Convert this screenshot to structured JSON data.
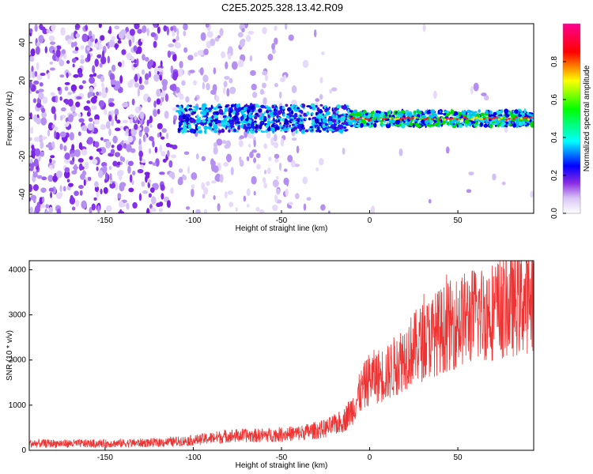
{
  "figure_title": "C2E5.2025.328.13.42.R09",
  "chart_data": [
    {
      "type": "heatmap",
      "title": "C2E5.2025.328.13.42.R09",
      "xlabel": "Height of straight line (km)",
      "ylabel": "Frequency (Hz)",
      "xlim": [
        -193,
        93
      ],
      "ylim": [
        -50,
        50
      ],
      "xticks": [
        -150,
        -100,
        -50,
        0,
        50
      ],
      "yticks": [
        -40,
        -20,
        0,
        20,
        40
      ],
      "colorbar": {
        "label": "Normalized spectral amplitude",
        "range": [
          0.0,
          1.0
        ],
        "ticks": [
          0.0,
          0.2,
          0.4,
          0.6,
          0.8
        ],
        "colormap": [
          "#ffffff",
          "#cfb4f0",
          "#8a2be2",
          "#0000ff",
          "#00ffff",
          "#00ff00",
          "#ffff00",
          "#ff0000",
          "#ff00a0"
        ]
      },
      "features": {
        "noise_region_x": [
          -193,
          -110
        ],
        "signal_band_center_hz": 0,
        "signal_start_x": -110,
        "signal_peak_x_start": -12
      }
    },
    {
      "type": "line",
      "xlabel": "Height of straight line (km)",
      "ylabel": "SNR (10 * v/v)",
      "xlim": [
        -193,
        93
      ],
      "ylim": [
        0,
        4200
      ],
      "xticks": [
        -150,
        -100,
        -50,
        0,
        50
      ],
      "yticks": [
        0,
        1000,
        2000,
        3000,
        4000
      ],
      "color": "#ee3333",
      "x": [
        -193,
        -150,
        -120,
        -100,
        -80,
        -60,
        -40,
        -25,
        -15,
        -10,
        -5,
        0,
        10,
        15,
        20,
        30,
        40,
        50,
        60,
        70,
        80,
        90,
        93
      ],
      "y": [
        150,
        150,
        170,
        220,
        320,
        330,
        380,
        480,
        650,
        900,
        1300,
        1600,
        1700,
        1900,
        2100,
        2400,
        2650,
        2850,
        3000,
        3100,
        3200,
        3350,
        3400
      ]
    }
  ]
}
